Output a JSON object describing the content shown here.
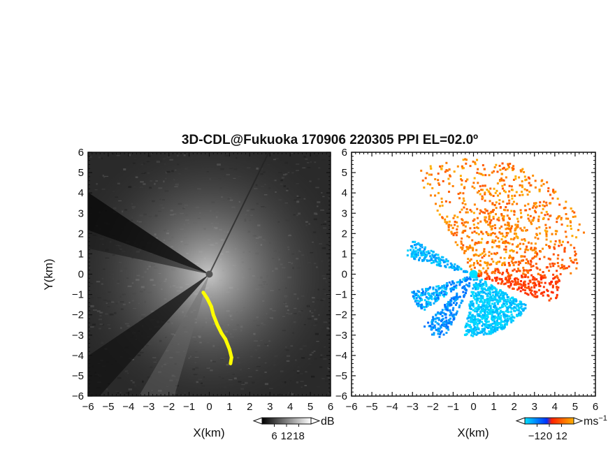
{
  "figure": {
    "title": "3D-CDL@Fukuoka 170906 220305 PPI EL=02.0º"
  },
  "chart_data": [
    {
      "type": "heatmap",
      "name": "reflectivity-ppi",
      "xlabel": "X(km)",
      "ylabel": "Y(km)",
      "xlim": [
        -6,
        6
      ],
      "ylim": [
        -6,
        6
      ],
      "xticks": [
        "−6",
        "−5",
        "−4",
        "−3",
        "−2",
        "−1",
        "0",
        "1",
        "2",
        "3",
        "4",
        "5",
        "6"
      ],
      "yticks": [
        "6",
        "5",
        "4",
        "3",
        "2",
        "1",
        "0",
        "−1",
        "−2",
        "−3",
        "−4",
        "−5",
        "−6"
      ],
      "colorbar": {
        "ticks": [
          "6",
          "12",
          "18"
        ],
        "unit": "dB",
        "range": [
          0,
          24
        ],
        "colors": [
          "#000000",
          "#ffffff"
        ]
      },
      "highlight": {
        "color": "#ffff00",
        "points": [
          [
            -0.3,
            -0.9
          ],
          [
            -0.1,
            -1.2
          ],
          [
            0.1,
            -1.6
          ],
          [
            0.2,
            -2.0
          ],
          [
            0.4,
            -2.5
          ],
          [
            0.6,
            -2.9
          ],
          [
            0.8,
            -3.2
          ],
          [
            1.0,
            -3.7
          ],
          [
            1.1,
            -4.1
          ],
          [
            1.05,
            -4.4
          ]
        ]
      },
      "shadow_sectors_deg": [
        [
          -146,
          -131
        ],
        [
          -120,
          -106
        ],
        [
          -135,
          -128
        ],
        [
          -110,
          -102
        ]
      ],
      "bright_ray_deg": 64
    },
    {
      "type": "heatmap",
      "name": "doppler-velocity-ppi",
      "xlabel": "X(km)",
      "xlim": [
        -6,
        6
      ],
      "ylim": [
        -6,
        6
      ],
      "xticks": [
        "−6",
        "−5",
        "−4",
        "−3",
        "−2",
        "−1",
        "0",
        "1",
        "2",
        "3",
        "4",
        "5",
        "6"
      ],
      "colorbar": {
        "ticks": [
          "−12",
          "0",
          "12"
        ],
        "unit": "ms",
        "unit_exp": "−1",
        "range": [
          -18,
          18
        ],
        "colors": [
          "#00e0ff",
          "#0030ff",
          "#ff2000",
          "#ffb000"
        ]
      },
      "center_marker_color": "#00e0ff"
    }
  ]
}
